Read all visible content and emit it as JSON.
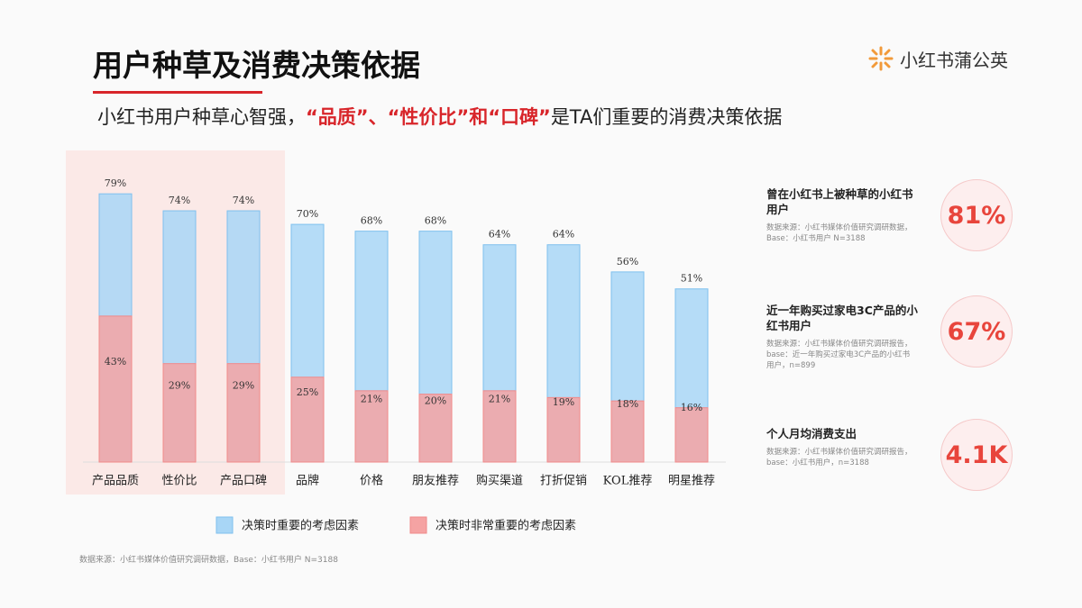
{
  "header": {
    "title": "用户种草及消费决策依据",
    "logo": "小红书蒲公英",
    "subtitle": [
      "小红书用户种草心智强，",
      "“品质”、“性价比”和“口碑”",
      "是TA们重要的消费决策依据"
    ]
  },
  "chart_data": {
    "type": "overlap-bar",
    "categories": [
      "产品品质",
      "性价比",
      "产品口碑",
      "品牌",
      "价格",
      "朋友推荐",
      "购买渠道",
      "打折促销",
      "KOL推荐",
      "明星推荐"
    ],
    "series": [
      {
        "name": "决策时重要的考虑因素",
        "color": "#a8d6f6",
        "values": [
          79,
          74,
          74,
          70,
          68,
          68,
          64,
          64,
          56,
          51
        ],
        "value_labels": [
          "79%",
          "74%",
          "74%",
          "70%",
          "68%",
          "68%",
          "64%",
          "64%",
          "56%",
          "51%"
        ]
      },
      {
        "name": "决策时非常重要的考虑因素",
        "color": "#f5a3a3",
        "values": [
          43,
          29,
          29,
          25,
          21,
          20,
          21,
          19,
          18,
          16
        ],
        "value_labels": [
          "43%",
          "29%",
          "29%",
          "25%",
          "21%",
          "20%",
          "21%",
          "19%",
          "18%",
          "16%"
        ]
      }
    ]
  },
  "stats": [
    {
      "label": "曾在小红书上被种草的小红书用户",
      "note": "数据来源：小红书媒体价值研究调研数据，Base：小红书用户 N=3188",
      "value": "81%"
    },
    {
      "label": "近一年购买过家电3C产品的小红书用户",
      "note": "数据来源：小红书媒体价值研究调研报告，base：近一年购买过家电3C产品的小红书用户，n=899",
      "value": "67%"
    },
    {
      "label": "个人月均消费支出",
      "note": "数据来源：小红书媒体价值研究调研报告，base：小红书用户，n=3188",
      "value": "4.1K"
    }
  ],
  "footnote": "数据来源：小红书媒体价值研究调研数据，Base：小红书用户 N=3188"
}
